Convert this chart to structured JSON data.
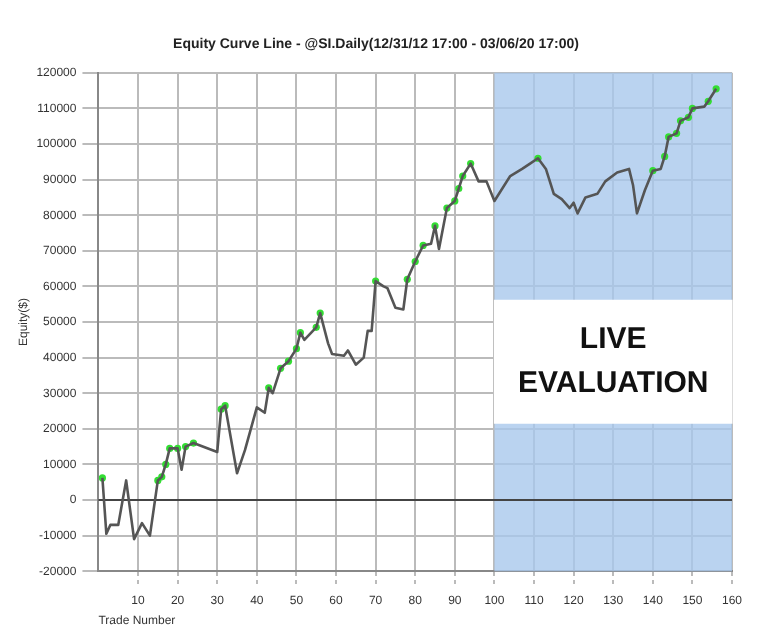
{
  "chart_data": {
    "type": "line",
    "title": "Equity Curve Line - @SI.Daily(12/31/12 17:00 - 03/06/20 17:00)",
    "xlabel": "Trade Number",
    "ylabel": "Equity($)",
    "series": [
      {
        "color": "#555555",
        "marker": "none",
        "x": [
          1,
          2,
          3,
          5,
          7,
          9,
          11,
          13,
          15,
          16,
          17,
          18,
          20,
          21,
          22,
          24,
          30,
          31,
          32,
          35,
          37,
          40,
          42,
          43,
          44,
          46,
          48,
          50,
          51,
          52,
          55,
          56,
          58,
          59,
          62,
          63,
          65,
          67,
          68,
          69,
          70,
          72,
          73,
          75,
          77,
          78,
          80,
          82,
          84,
          85,
          86,
          88,
          90,
          91,
          92,
          94,
          96,
          98,
          100,
          104,
          107,
          109,
          111,
          113,
          115,
          117,
          119,
          120,
          121,
          123,
          126,
          128,
          131,
          134,
          135,
          136,
          138,
          140,
          142,
          143,
          144,
          146,
          147,
          149,
          150,
          153,
          154,
          156
        ],
        "values": [
          6200,
          -9500,
          -7000,
          -7000,
          5500,
          -11000,
          -6500,
          -10000,
          5500,
          6500,
          10000,
          14500,
          14500,
          8500,
          15000,
          16000,
          13500,
          25500,
          26500,
          7500,
          14000,
          26000,
          24500,
          31500,
          30000,
          37000,
          39000,
          42500,
          47000,
          45000,
          48500,
          52500,
          44000,
          41000,
          40500,
          42000,
          38000,
          40000,
          47500,
          47500,
          61500,
          60000,
          59500,
          54000,
          53500,
          62000,
          67000,
          71500,
          72000,
          77000,
          70500,
          82000,
          84000,
          87500,
          91000,
          94500,
          89500,
          89500,
          84000,
          91000,
          93000,
          94500,
          96000,
          93000,
          86000,
          84500,
          82000,
          83500,
          80500,
          85000,
          86000,
          89500,
          92000,
          93000,
          88500,
          80500,
          87000,
          92500,
          93000,
          96500,
          102000,
          103000,
          106500,
          107500,
          110000,
          110500,
          112000,
          115500
        ]
      },
      {
        "type": "scatter",
        "color": "#33dd33",
        "x": [
          1,
          15,
          16,
          17,
          18,
          20,
          22,
          24,
          31,
          32,
          43,
          46,
          48,
          50,
          51,
          55,
          56,
          70,
          78,
          80,
          82,
          85,
          88,
          90,
          91,
          92,
          94,
          111,
          140,
          143,
          144,
          146,
          147,
          149,
          150,
          154,
          156
        ],
        "values": [
          6200,
          5500,
          6500,
          10000,
          14500,
          14500,
          15000,
          16000,
          25500,
          26500,
          31500,
          37000,
          39000,
          42500,
          47000,
          48500,
          52500,
          61500,
          62000,
          67000,
          71500,
          77000,
          82000,
          84000,
          87500,
          91000,
          94500,
          96000,
          92500,
          96500,
          102000,
          103000,
          106500,
          107500,
          110000,
          112000,
          115500
        ]
      }
    ],
    "xlim": [
      0,
      160
    ],
    "xticks": [
      10,
      20,
      30,
      40,
      50,
      60,
      70,
      80,
      90,
      100,
      110,
      120,
      130,
      140,
      150,
      160
    ],
    "ylim": [
      -20000,
      120000
    ],
    "yticks": [
      -20000,
      -10000,
      0,
      10000,
      20000,
      30000,
      40000,
      50000,
      60000,
      70000,
      80000,
      90000,
      100000,
      110000,
      120000
    ],
    "ref_lines": [
      {
        "axis": "y",
        "value": 0,
        "color": "#444444"
      }
    ],
    "bands": [
      {
        "axis": "x",
        "from": 100,
        "to": 160,
        "label": "LIVE EVALUATION",
        "color": "#a9c8ec"
      }
    ],
    "grid": true,
    "legend": false,
    "marker": "circle",
    "line_style": "solid"
  }
}
